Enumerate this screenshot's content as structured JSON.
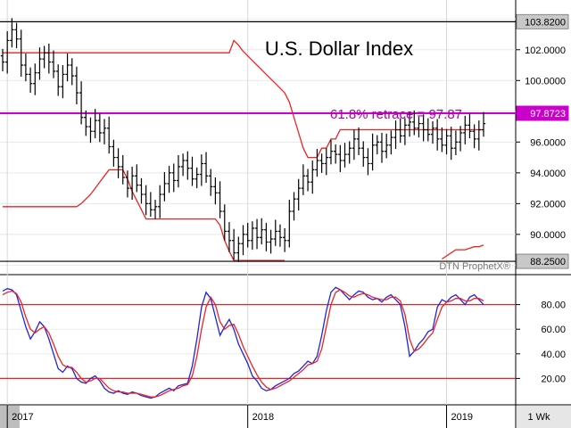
{
  "chart_data": [
    {
      "type": "ohlc",
      "title": "U.S. Dollar Index",
      "annotation": "61.8% retrace = 97.87",
      "watermark": "DTN ProphetX®",
      "interval_label": "1 Wk",
      "x_labels": [
        "2017",
        "2018",
        "2019"
      ],
      "y_ticks": [
        "102.0000",
        "100.0000",
        "96.0000",
        "94.0000",
        "92.0000",
        "90.0000"
      ],
      "ylim": [
        87.5,
        105.0
      ],
      "price_tags": [
        {
          "label": "103.8200",
          "value": 103.82,
          "color": "#000000"
        },
        {
          "label": "97.8723",
          "value": 97.87,
          "color": "#cc00cc"
        },
        {
          "label": "88.2500",
          "value": 88.25,
          "color": "#000000"
        }
      ],
      "horizontal_lines": [
        {
          "value": 103.82,
          "color": "#000000"
        },
        {
          "value": 97.87,
          "color": "#cc00cc"
        },
        {
          "value": 88.25,
          "color": "#000000"
        }
      ],
      "weekly_close": [
        101.2,
        102.6,
        103.3,
        102.7,
        101.0,
        100.4,
        99.8,
        100.5,
        101.4,
        101.8,
        101.2,
        100.6,
        99.6,
        100.4,
        101.0,
        100.3,
        99.2,
        97.6,
        97.0,
        96.7,
        97.4,
        96.6,
        96.9,
        95.7,
        95.0,
        94.4,
        93.7,
        93.0,
        93.8,
        93.2,
        92.6,
        92.0,
        91.6,
        91.8,
        92.6,
        93.3,
        94.0,
        93.5,
        94.4,
        94.8,
        94.3,
        93.6,
        93.9,
        94.6,
        93.8,
        93.1,
        92.7,
        91.5,
        90.2,
        89.6,
        88.8,
        89.4,
        90.0,
        89.6,
        90.4,
        89.8,
        90.3,
        89.5,
        89.7,
        90.2,
        89.8,
        89.6,
        91.5,
        92.3,
        93.0,
        93.8,
        93.4,
        94.2,
        94.8,
        94.6,
        95.0,
        95.4,
        95.2,
        94.8,
        95.2,
        95.6,
        96.2,
        95.6,
        95.0,
        94.6,
        95.8,
        96.0,
        95.4,
        95.8,
        96.3,
        96.8,
        96.4,
        97.1,
        97.3,
        96.9,
        97.2,
        96.8,
        96.5,
        96.9,
        96.2,
        95.8,
        96.4,
        95.6,
        96.0,
        96.6,
        97.1,
        96.7,
        96.2,
        96.8,
        97.2
      ],
      "series": [
        {
          "name": "",
          "color": "#ee2222",
          "role": "upper-channel",
          "values": [
            101.8,
            101.8,
            101.8,
            101.8,
            101.8,
            101.8,
            101.8,
            101.8,
            101.8,
            101.8,
            101.8,
            101.8,
            101.8,
            101.8,
            101.8,
            101.8,
            101.8,
            101.8,
            101.8,
            101.8,
            101.8,
            101.8,
            101.8,
            101.8,
            101.8,
            101.8,
            101.8,
            101.8,
            101.8,
            101.8,
            101.8,
            101.8,
            101.8,
            101.8,
            101.8,
            101.8,
            101.8,
            101.8,
            101.8,
            101.8,
            101.8,
            101.8,
            101.8,
            101.8,
            101.8,
            101.8,
            101.8,
            101.8,
            101.8,
            101.8,
            102.6,
            102.3,
            101.9,
            101.6,
            101.3,
            101.0,
            100.7,
            100.4,
            100.1,
            99.8,
            99.5,
            99.2,
            98.6,
            97.6,
            96.6,
            95.6,
            95.0,
            95.0,
            95.0,
            95.6,
            95.6,
            96.2,
            96.2,
            96.8,
            96.8,
            96.8,
            96.8,
            96.8,
            96.8,
            96.8,
            96.8,
            96.8,
            96.8,
            96.8,
            96.8,
            96.8,
            96.8,
            96.8,
            96.8,
            96.8,
            96.8,
            96.8,
            96.8,
            96.8,
            96.8,
            96.8,
            96.8,
            96.8,
            96.8,
            96.8,
            96.8,
            96.8,
            96.8,
            96.8,
            96.8
          ]
        },
        {
          "name": "",
          "color": "#ee2222",
          "role": "lower-channel",
          "values": [
            91.8,
            91.8,
            91.8,
            91.8,
            91.8,
            91.8,
            91.8,
            91.8,
            91.8,
            91.8,
            91.8,
            91.8,
            91.8,
            91.8,
            91.8,
            91.8,
            91.8,
            92.0,
            92.3,
            92.6,
            93.0,
            93.4,
            93.8,
            94.2,
            94.2,
            94.2,
            94.2,
            93.6,
            92.8,
            92.2,
            91.6,
            91.0,
            91.0,
            91.0,
            91.0,
            91.0,
            91.0,
            91.0,
            91.0,
            91.0,
            91.0,
            91.0,
            91.0,
            91.0,
            91.0,
            91.0,
            91.0,
            90.6,
            89.6,
            88.9,
            88.3,
            88.3,
            88.3,
            88.3,
            88.3,
            88.3,
            88.3,
            88.3,
            88.3,
            88.3,
            88.3,
            88.3,
            null,
            null,
            null,
            null,
            null,
            null,
            null,
            null,
            null,
            null,
            null,
            null,
            null,
            null,
            null,
            null,
            null,
            null,
            null,
            null,
            null,
            null,
            null,
            null,
            null,
            null,
            null,
            null,
            null,
            null,
            null,
            null,
            null,
            88.4,
            88.6,
            88.8,
            89.0,
            89.0,
            89.0,
            89.1,
            89.2,
            89.2,
            89.3
          ]
        }
      ]
    },
    {
      "type": "line",
      "ylim": [
        0,
        100
      ],
      "y_ticks": [
        "80.00",
        "60.00",
        "40.00",
        "20.00"
      ],
      "reference_lines": [
        80,
        20
      ],
      "series": [
        {
          "name": "",
          "color": "#2222dd",
          "values": [
            91,
            93,
            92,
            88,
            75,
            62,
            52,
            58,
            66,
            62,
            52,
            40,
            28,
            25,
            30,
            28,
            20,
            17,
            16,
            20,
            22,
            18,
            12,
            9,
            8,
            10,
            8,
            7,
            9,
            8,
            6,
            5,
            4,
            5,
            8,
            10,
            12,
            10,
            14,
            15,
            16,
            30,
            52,
            78,
            90,
            85,
            70,
            55,
            62,
            68,
            60,
            48,
            40,
            32,
            22,
            18,
            12,
            10,
            11,
            14,
            16,
            18,
            20,
            24,
            26,
            30,
            34,
            32,
            38,
            55,
            75,
            90,
            94,
            92,
            88,
            84,
            88,
            91,
            90,
            86,
            84,
            85,
            82,
            86,
            88,
            84,
            80,
            62,
            38,
            42,
            48,
            52,
            58,
            60,
            78,
            84,
            82,
            86,
            88,
            84,
            80,
            86,
            88,
            84,
            80
          ]
        },
        {
          "name": "",
          "color": "#ee2222",
          "values": [
            88,
            90,
            91,
            89,
            82,
            70,
            60,
            57,
            60,
            62,
            57,
            48,
            38,
            31,
            29,
            29,
            25,
            20,
            17,
            18,
            20,
            20,
            16,
            12,
            10,
            9,
            9,
            8,
            8,
            8,
            7,
            6,
            5,
            5,
            6,
            8,
            10,
            11,
            12,
            14,
            15,
            22,
            38,
            60,
            78,
            86,
            80,
            66,
            60,
            63,
            64,
            56,
            46,
            38,
            30,
            23,
            17,
            13,
            11,
            12,
            14,
            16,
            18,
            21,
            24,
            27,
            31,
            32,
            34,
            44,
            62,
            80,
            90,
            92,
            90,
            87,
            86,
            88,
            89,
            88,
            86,
            85,
            84,
            84,
            86,
            86,
            83,
            72,
            52,
            42,
            44,
            48,
            53,
            57,
            68,
            78,
            82,
            83,
            85,
            85,
            83,
            83,
            85,
            85,
            83
          ]
        }
      ]
    }
  ]
}
